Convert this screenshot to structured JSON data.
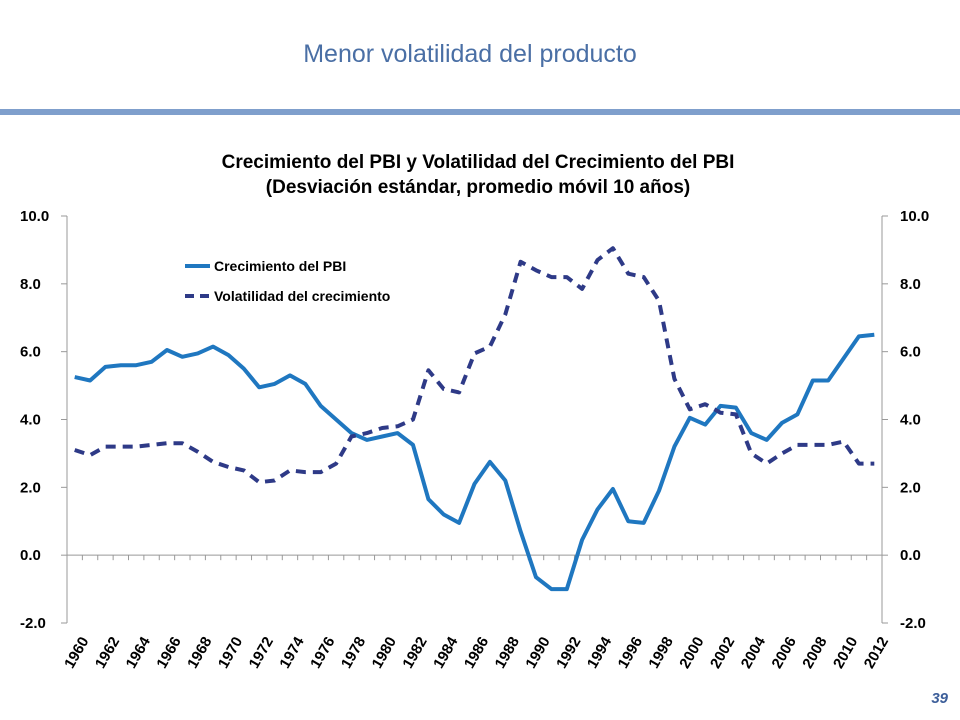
{
  "slide": {
    "title": "Menor volatilidad del producto",
    "page_number": "39"
  },
  "colors": {
    "title": "#4a6fa5",
    "rule": "#7f9fcc",
    "series_growth": "#1f77c0",
    "series_volatility": "#2e3a87"
  },
  "chart_data": {
    "type": "line",
    "title_lines": [
      "Crecimiento del PBI y Volatilidad del Crecimiento del PBI",
      "(Desviación estándar, promedio móvil 10 años)"
    ],
    "x": [
      1960,
      1961,
      1962,
      1963,
      1964,
      1965,
      1966,
      1967,
      1968,
      1969,
      1970,
      1971,
      1972,
      1973,
      1974,
      1975,
      1976,
      1977,
      1978,
      1979,
      1980,
      1981,
      1982,
      1983,
      1984,
      1985,
      1986,
      1987,
      1988,
      1989,
      1990,
      1991,
      1992,
      1993,
      1994,
      1995,
      1996,
      1997,
      1998,
      1999,
      2000,
      2001,
      2002,
      2003,
      2004,
      2005,
      2006,
      2007,
      2008,
      2009,
      2010,
      2011,
      2012
    ],
    "x_tick_labels": [
      "1960",
      "1962",
      "1964",
      "1966",
      "1968",
      "1970",
      "1972",
      "1974",
      "1976",
      "1978",
      "1980",
      "1982",
      "1984",
      "1986",
      "1988",
      "1990",
      "1992",
      "1994",
      "1996",
      "1998",
      "2000",
      "2002",
      "2004",
      "2006",
      "2008",
      "2010",
      "2012"
    ],
    "ylim": [
      -2,
      10
    ],
    "y_ticks_left": [
      "10.0",
      "8.0",
      "6.0",
      "4.0",
      "2.0",
      "0.0",
      "-2.0"
    ],
    "y_ticks_right": [
      "10.0",
      "8.0",
      "6.0",
      "4.0",
      "2.0",
      "0.0",
      "-2.0"
    ],
    "y_tick_values": [
      10,
      8,
      6,
      4,
      2,
      0,
      -2
    ],
    "legend": "top-left",
    "series": [
      {
        "name": "Crecimiento del PBI",
        "style": "solid",
        "values": [
          5.25,
          5.15,
          5.55,
          5.6,
          5.6,
          5.7,
          6.05,
          5.85,
          5.95,
          6.15,
          5.9,
          5.5,
          4.95,
          5.05,
          5.3,
          5.05,
          4.4,
          4.0,
          3.6,
          3.4,
          3.5,
          3.6,
          3.25,
          1.65,
          1.2,
          0.95,
          2.1,
          2.75,
          2.2,
          0.7,
          -0.65,
          -1.0,
          -1.0,
          0.45,
          1.35,
          1.95,
          1.0,
          0.95,
          1.9,
          3.2,
          4.05,
          3.85,
          4.4,
          4.35,
          3.6,
          3.4,
          3.9,
          4.15,
          5.15,
          5.15,
          5.8,
          6.45,
          6.5
        ]
      },
      {
        "name": "Volatilidad del crecimiento",
        "style": "dashed",
        "values": [
          3.1,
          2.95,
          3.2,
          3.2,
          3.2,
          3.25,
          3.3,
          3.3,
          3.05,
          2.75,
          2.6,
          2.5,
          2.15,
          2.2,
          2.5,
          2.45,
          2.45,
          2.7,
          3.5,
          3.6,
          3.75,
          3.8,
          4.0,
          5.45,
          4.9,
          4.8,
          5.95,
          6.15,
          7.1,
          8.65,
          8.4,
          8.2,
          8.2,
          7.85,
          8.7,
          9.05,
          8.3,
          8.2,
          7.5,
          5.2,
          4.3,
          4.45,
          4.2,
          4.15,
          3.0,
          2.7,
          3.0,
          3.25,
          3.25,
          3.25,
          3.35,
          2.7,
          2.7
        ]
      }
    ]
  }
}
